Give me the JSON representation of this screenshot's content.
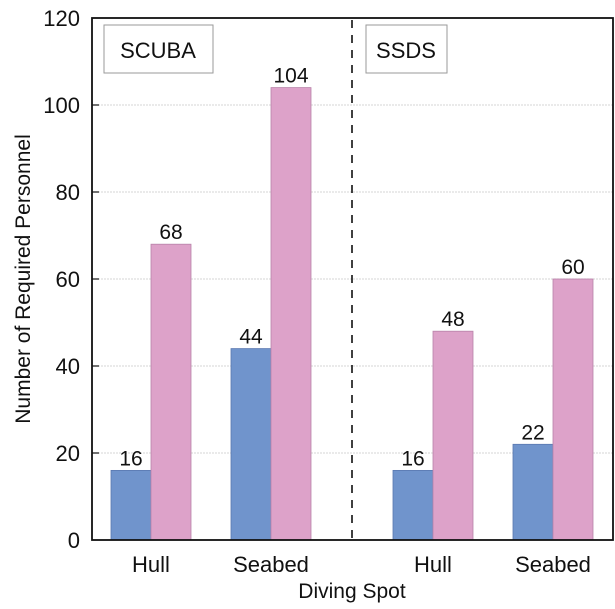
{
  "chart_data": {
    "type": "bar",
    "title": "",
    "xlabel": "Diving Spot",
    "ylabel": "Number of Required Personnel",
    "ylim": [
      0,
      120
    ],
    "yticks": [
      0,
      20,
      40,
      60,
      80,
      100,
      120
    ],
    "grid": true,
    "legend": null,
    "panels": [
      {
        "label": "SCUBA",
        "categories": [
          "Hull",
          "Seabed"
        ],
        "series": [
          {
            "name": "series-1 (blue)",
            "color": "#7094cc",
            "values": [
              16,
              44
            ]
          },
          {
            "name": "series-2 (pink)",
            "color": "#dda2c9",
            "values": [
              68,
              104
            ]
          }
        ]
      },
      {
        "label": "SSDS",
        "categories": [
          "Hull",
          "Seabed"
        ],
        "series": [
          {
            "name": "series-1 (blue)",
            "color": "#7094cc",
            "values": [
              16,
              22
            ]
          },
          {
            "name": "series-2 (pink)",
            "color": "#dda2c9",
            "values": [
              48,
              60
            ]
          }
        ]
      }
    ],
    "annotations": [
      "SCUBA",
      "SSDS"
    ],
    "divider": "dashed vertical line separating SCUBA and SSDS panels"
  },
  "colors": {
    "blue": "#7094cc",
    "pink": "#dda2c9",
    "grid": "#d4d4d4",
    "axis": "#111111"
  }
}
